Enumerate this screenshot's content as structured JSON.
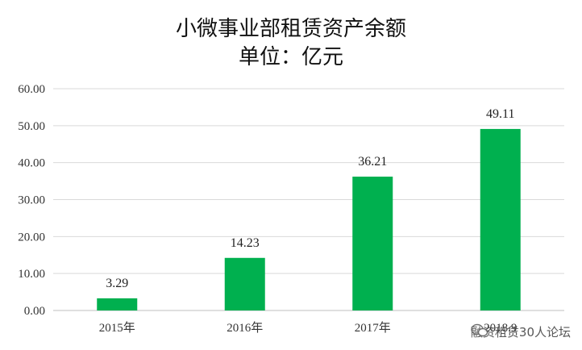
{
  "chart_data": {
    "type": "bar",
    "title": "小微事业部租赁资产余额",
    "subtitle": "单位：亿元",
    "categories": [
      "2015年",
      "2016年",
      "2017年",
      "2018.9"
    ],
    "values": [
      3.29,
      14.23,
      36.21,
      49.11
    ],
    "data_labels": [
      "3.29",
      "14.23",
      "36.21",
      "49.11"
    ],
    "ylim": [
      0,
      60
    ],
    "yticks": [
      "0.00",
      "10.00",
      "20.00",
      "30.00",
      "40.00",
      "50.00",
      "60.00"
    ],
    "grid": true,
    "bar_color": "#00b04f",
    "legend": "none"
  },
  "watermark": "融资租赁30人论坛"
}
